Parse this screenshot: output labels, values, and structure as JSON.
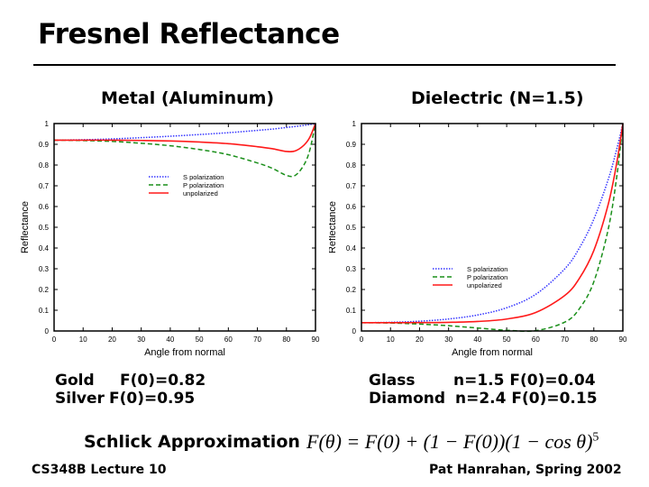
{
  "slide": {
    "title": "Fresnel Reflectance",
    "metal_heading": "Metal (Aluminum)",
    "dielectric_heading": "Dielectric (N=1.5)",
    "metal_rows": [
      {
        "name": "Gold",
        "value": "F(0)=0.82"
      },
      {
        "name": "Silver",
        "value": "F(0)=0.95"
      }
    ],
    "dielectric_rows": [
      {
        "name": "Glass",
        "value": "n=1.5 F(0)=0.04"
      },
      {
        "name": "Diamond",
        "value": "n=2.4 F(0)=0.15"
      }
    ],
    "schlick_label": "Schlick Approximation",
    "schlick_formula": "F(θ) = F(0) + (1 − F(0))(1 − cos θ)",
    "schlick_exponent": "5",
    "footer_left": "CS348B Lecture 10",
    "footer_right": "Pat Hanrahan, Spring 2002"
  },
  "chart_data": [
    {
      "type": "line",
      "title": "Metal (Aluminum)",
      "xlabel": "Angle from normal",
      "ylabel": "Reflectance",
      "xlim": [
        0,
        90
      ],
      "ylim": [
        0,
        1
      ],
      "xticks": [
        "0",
        "10",
        "20",
        "30",
        "40",
        "50",
        "60",
        "70",
        "80",
        "90"
      ],
      "yticks": [
        "0",
        "0.1",
        "0.2",
        "0.3",
        "0.4",
        "0.5",
        "0.6",
        "0.7",
        "0.8",
        "0.9",
        "1"
      ],
      "legend_position": "center",
      "x": [
        0,
        10,
        20,
        30,
        40,
        50,
        60,
        70,
        75,
        80,
        83,
        86,
        88,
        90
      ],
      "series": [
        {
          "name": "S polarization",
          "color": "#3333ff",
          "style": "dotted",
          "values": [
            0.92,
            0.922,
            0.926,
            0.932,
            0.939,
            0.947,
            0.956,
            0.967,
            0.973,
            0.981,
            0.986,
            0.991,
            0.995,
            1.0
          ]
        },
        {
          "name": "P polarization",
          "color": "#1a8f1a",
          "style": "dashed",
          "values": [
            0.92,
            0.918,
            0.914,
            0.905,
            0.893,
            0.875,
            0.85,
            0.81,
            0.785,
            0.75,
            0.75,
            0.8,
            0.87,
            1.0
          ]
        },
        {
          "name": "unpolarized",
          "color": "#ff1a1a",
          "style": "solid",
          "values": [
            0.92,
            0.92,
            0.92,
            0.9185,
            0.916,
            0.911,
            0.903,
            0.8885,
            0.879,
            0.8655,
            0.868,
            0.8955,
            0.9325,
            1.0
          ]
        }
      ]
    },
    {
      "type": "line",
      "title": "Dielectric (N=1.5)",
      "xlabel": "Angle from normal",
      "ylabel": "Reflectance",
      "xlim": [
        0,
        90
      ],
      "ylim": [
        0,
        1
      ],
      "xticks": [
        "0",
        "10",
        "20",
        "30",
        "40",
        "50",
        "60",
        "70",
        "80",
        "90"
      ],
      "yticks": [
        "0",
        "0.1",
        "0.2",
        "0.3",
        "0.4",
        "0.5",
        "0.6",
        "0.7",
        "0.8",
        "0.9",
        "1"
      ],
      "legend_position": "lower-center",
      "x": [
        0,
        10,
        20,
        30,
        40,
        50,
        60,
        70,
        75,
        80,
        85,
        88,
        90
      ],
      "series": [
        {
          "name": "S polarization",
          "color": "#3333ff",
          "style": "dotted",
          "values": [
            0.04,
            0.0417,
            0.0471,
            0.0578,
            0.0772,
            0.112,
            0.1766,
            0.2996,
            0.3994,
            0.5388,
            0.7322,
            0.8827,
            1.0
          ]
        },
        {
          "name": "P polarization",
          "color": "#1a8f1a",
          "style": "dashed",
          "values": [
            0.04,
            0.0384,
            0.0334,
            0.0253,
            0.0143,
            0.0033,
            0.0018,
            0.0425,
            0.1068,
            0.2369,
            0.4931,
            0.7546,
            1.0
          ]
        },
        {
          "name": "unpolarized",
          "color": "#ff1a1a",
          "style": "solid",
          "values": [
            0.04,
            0.04,
            0.0403,
            0.0416,
            0.0458,
            0.0577,
            0.0892,
            0.171,
            0.2531,
            0.3879,
            0.6127,
            0.8187,
            1.0
          ]
        }
      ]
    }
  ]
}
